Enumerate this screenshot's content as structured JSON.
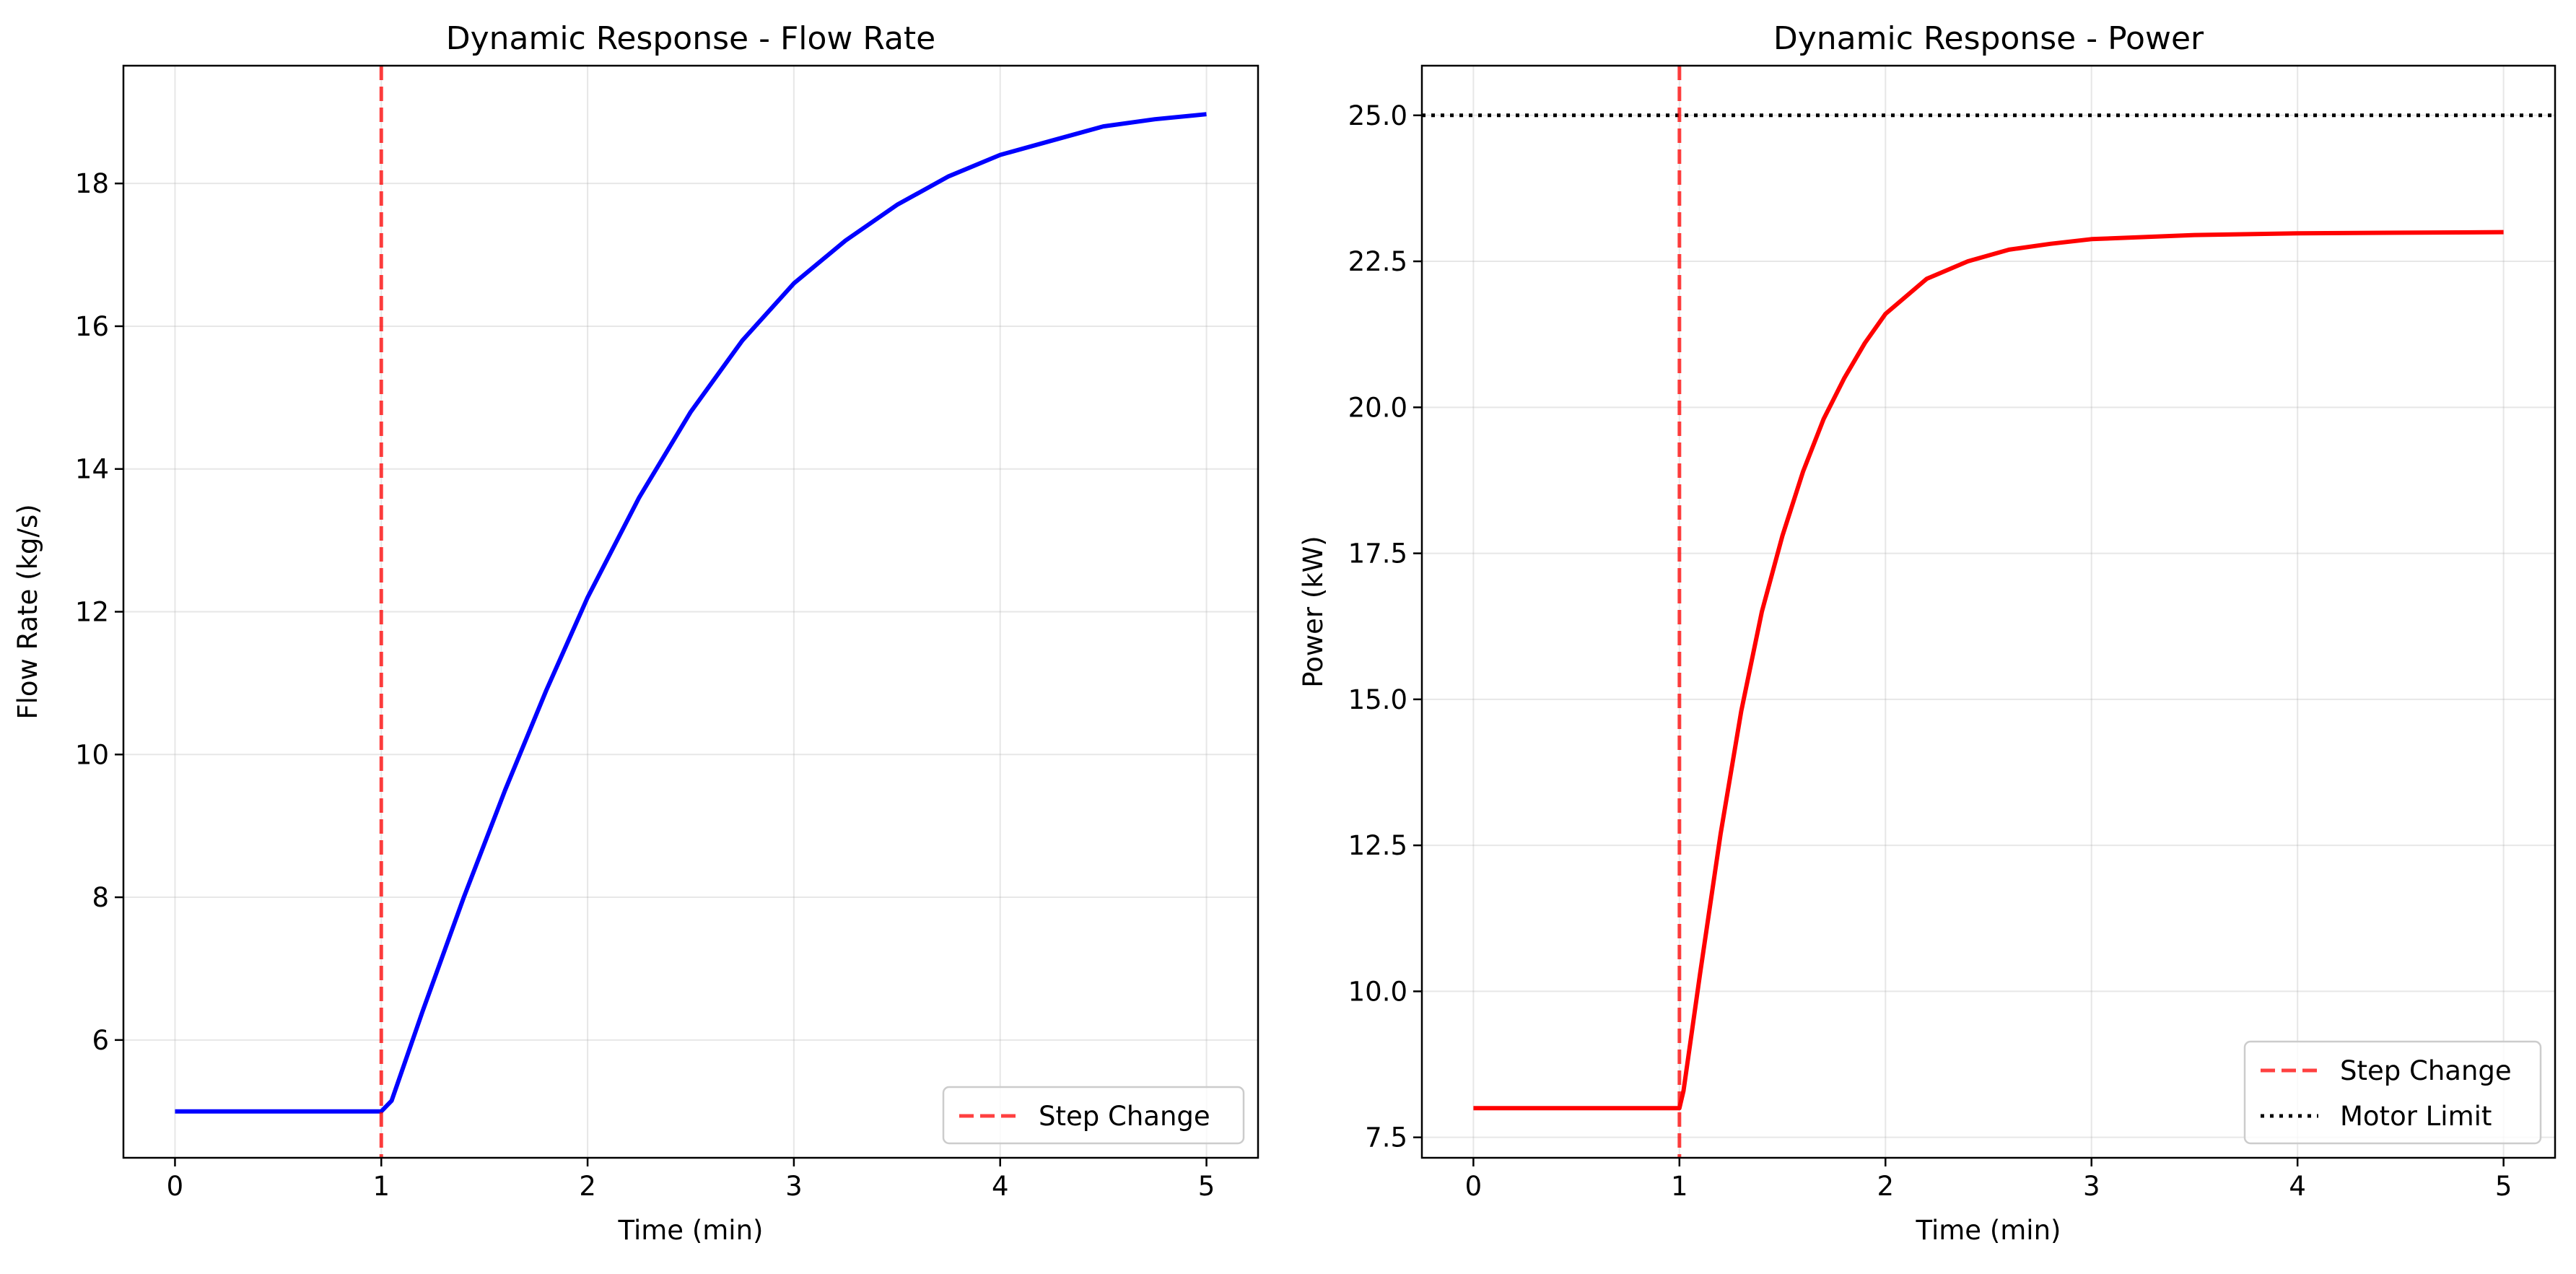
{
  "chart_data": [
    {
      "type": "line",
      "title": "Dynamic Response - Flow Rate",
      "xlabel": "Time (min)",
      "ylabel": "Flow Rate (kg/s)",
      "xlim": [
        -0.25,
        5.25
      ],
      "ylim": [
        4.35,
        19.65
      ],
      "xticks": [
        0,
        1,
        2,
        3,
        4,
        5
      ],
      "yticks": [
        6,
        8,
        10,
        12,
        14,
        16,
        18
      ],
      "grid": true,
      "legend_position": "lower-right",
      "series": [
        {
          "color": "#0000ff",
          "x": [
            0,
            0.5,
            0.95,
            1.0,
            1.05,
            1.2,
            1.4,
            1.6,
            1.8,
            2.0,
            2.25,
            2.5,
            2.75,
            3.0,
            3.25,
            3.5,
            3.75,
            4.0,
            4.25,
            4.5,
            4.75,
            5.0
          ],
          "y": [
            5.0,
            5.0,
            5.0,
            5.0,
            5.15,
            6.4,
            8.0,
            9.5,
            10.9,
            12.2,
            13.6,
            14.8,
            15.8,
            16.6,
            17.2,
            17.7,
            18.1,
            18.4,
            18.6,
            18.8,
            18.9,
            18.97
          ]
        }
      ],
      "vlines": [
        {
          "x": 1.0,
          "label": "Step Change",
          "color": "#ff0000",
          "style": "dashed"
        }
      ],
      "hlines": []
    },
    {
      "type": "line",
      "title": "Dynamic Response - Power",
      "xlabel": "Time (min)",
      "ylabel": "Power (kW)",
      "xlim": [
        -0.25,
        5.25
      ],
      "ylim": [
        7.15,
        25.85
      ],
      "xticks": [
        0,
        1,
        2,
        3,
        4,
        5
      ],
      "yticks": [
        7.5,
        10.0,
        12.5,
        15.0,
        17.5,
        20.0,
        22.5,
        25.0
      ],
      "grid": true,
      "legend_position": "lower-right",
      "series": [
        {
          "color": "#ff0000",
          "x": [
            0,
            0.5,
            0.95,
            1.0,
            1.02,
            1.1,
            1.2,
            1.3,
            1.4,
            1.5,
            1.6,
            1.7,
            1.8,
            1.9,
            2.0,
            2.2,
            2.4,
            2.6,
            2.8,
            3.0,
            3.5,
            4.0,
            4.5,
            5.0
          ],
          "y": [
            8.0,
            8.0,
            8.0,
            8.0,
            8.3,
            10.3,
            12.7,
            14.8,
            16.5,
            17.8,
            18.9,
            19.8,
            20.5,
            21.1,
            21.6,
            22.2,
            22.5,
            22.7,
            22.8,
            22.88,
            22.95,
            22.98,
            22.99,
            23.0
          ]
        }
      ],
      "vlines": [
        {
          "x": 1.0,
          "label": "Step Change",
          "color": "#ff0000",
          "style": "dashed"
        }
      ],
      "hlines": [
        {
          "y": 25.0,
          "label": "Motor Limit",
          "color": "#000000",
          "style": "dotted"
        }
      ]
    }
  ]
}
